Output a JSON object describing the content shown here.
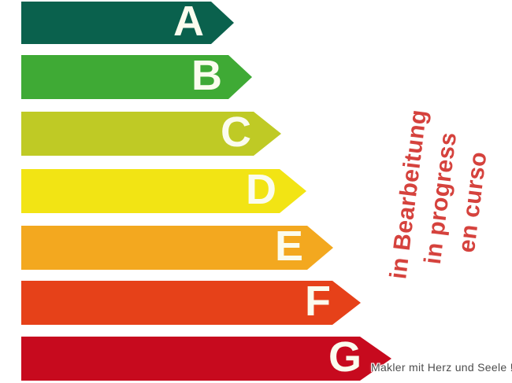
{
  "background": "#ffffff",
  "letter_color": "#fbfcee",
  "ratings": [
    {
      "label": "A",
      "color": "#0a614d"
    },
    {
      "label": "B",
      "color": "#3faa35"
    },
    {
      "label": "C",
      "color": "#bfca25"
    },
    {
      "label": "D",
      "color": "#f2e414"
    },
    {
      "label": "E",
      "color": "#f3a81f"
    },
    {
      "label": "F",
      "color": "#e64119"
    },
    {
      "label": "G",
      "color": "#c70a1e"
    }
  ],
  "status_note": {
    "color": "#d5423d",
    "lines": [
      "in Bearbeitung",
      "in progress",
      "en curso"
    ]
  },
  "watermark": {
    "color": "#4d4d4d",
    "text": "Makler mit Herz und Seele !"
  }
}
